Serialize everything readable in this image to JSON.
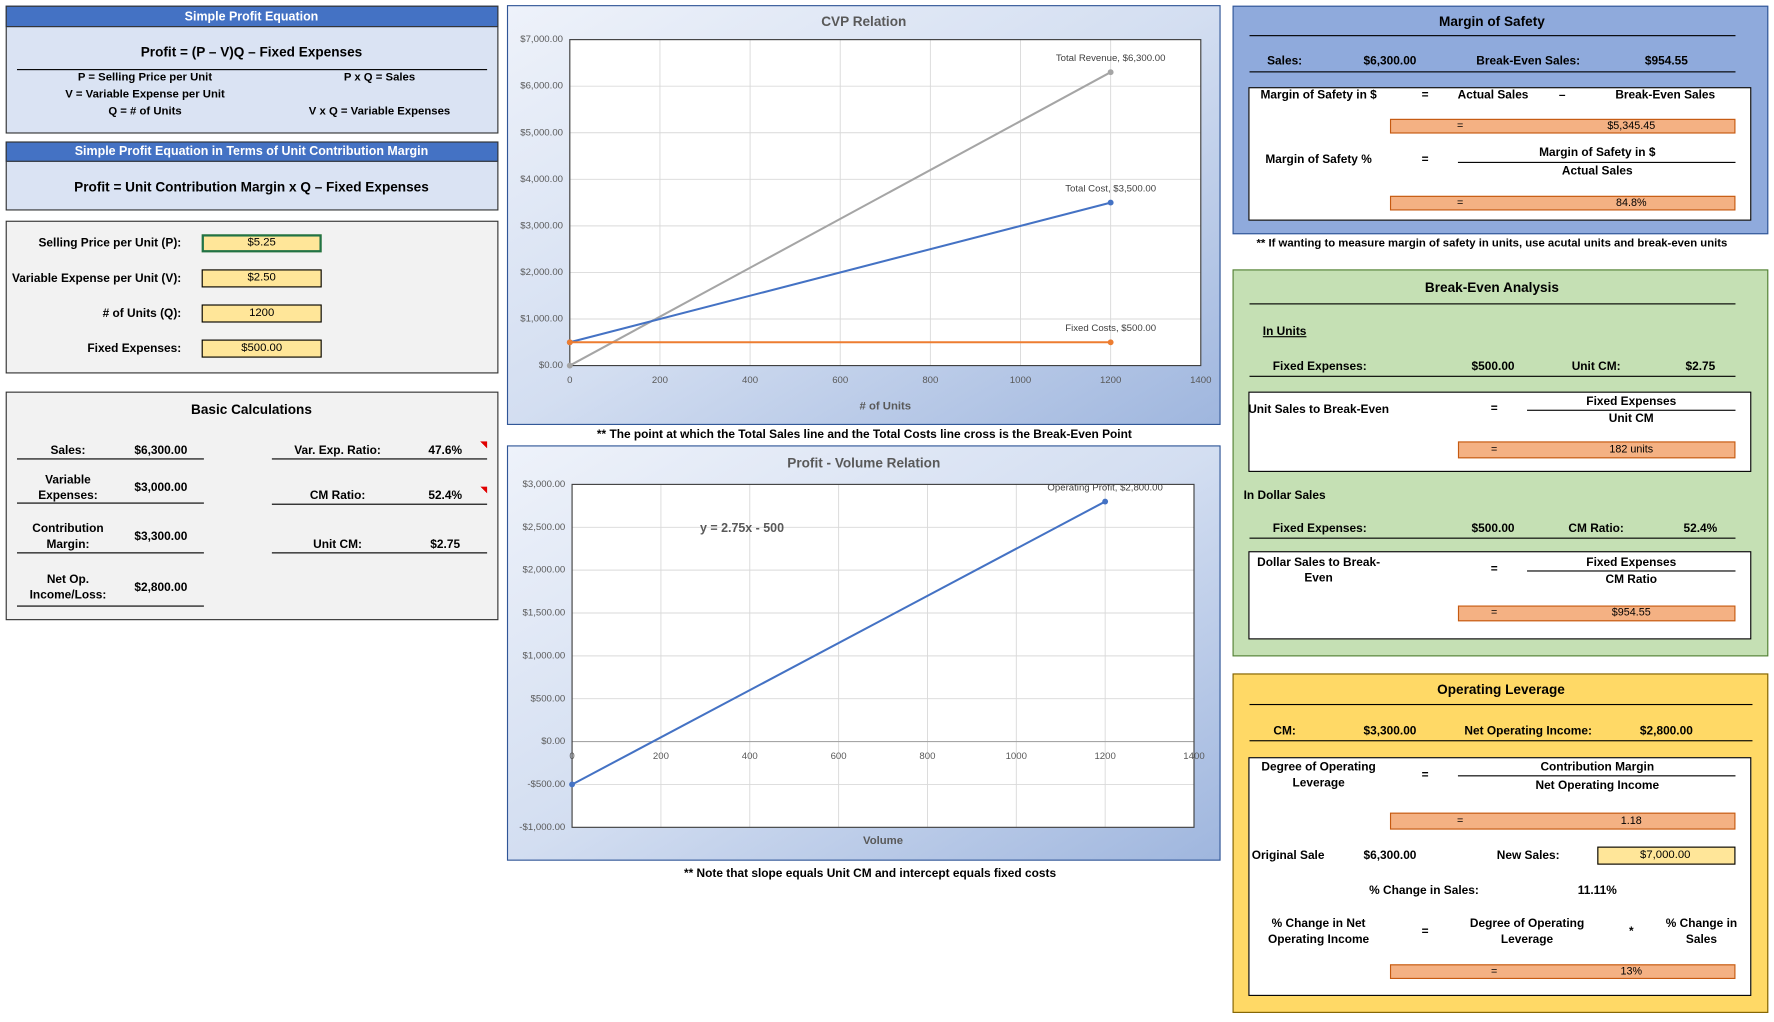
{
  "profit_equation": {
    "title": "Simple Profit Equation",
    "formula": "Profit = (P – V)Q – Fixed Expenses",
    "definitions": [
      "P = Selling Price per Unit",
      "P x Q = Sales",
      "V = Variable Expense per Unit",
      "Q = # of Units",
      "V x Q = Variable Expenses"
    ]
  },
  "ucm_equation": {
    "title": "Simple Profit Equation in Terms of Unit Contribution Margin",
    "formula": "Profit = Unit Contribution Margin x Q – Fixed Expenses"
  },
  "inputs": [
    {
      "label": "Selling Price per Unit (P):",
      "value": "$5.25"
    },
    {
      "label": "Variable Expense per Unit (V):",
      "value": "$2.50"
    },
    {
      "label": "# of Units (Q):",
      "value": "1200"
    },
    {
      "label": "Fixed Expenses:",
      "value": "$500.00"
    }
  ],
  "basic_calculations": {
    "title": "Basic Calculations",
    "left": [
      {
        "label": "Sales:",
        "value": "$6,300.00"
      },
      {
        "label": "Variable Expenses:",
        "value": "$3,000.00"
      },
      {
        "label": "Contribution Margin:",
        "value": "$3,300.00"
      },
      {
        "label": "Net Op. Income/Loss:",
        "value": "$2,800.00"
      }
    ],
    "right": [
      {
        "label": "Var. Exp. Ratio:",
        "value": "47.6%"
      },
      {
        "label": "CM Ratio:",
        "value": "52.4%"
      },
      {
        "label": "Unit CM:",
        "value": "$2.75"
      }
    ]
  },
  "chart_data": [
    {
      "type": "line",
      "title": "CVP Relation",
      "x_label": "# of Units",
      "x": [
        0,
        1200
      ],
      "xlim": [
        0,
        1400
      ],
      "xticks": [
        0,
        200,
        400,
        600,
        800,
        1000,
        1200,
        1400
      ],
      "ylim": [
        0,
        7000
      ],
      "yticks": [
        {
          "value": 0,
          "label": "$0.00"
        },
        {
          "value": 1000,
          "label": "$1,000.00"
        },
        {
          "value": 2000,
          "label": "$2,000.00"
        },
        {
          "value": 3000,
          "label": "$3,000.00"
        },
        {
          "value": 4000,
          "label": "$4,000.00"
        },
        {
          "value": 5000,
          "label": "$5,000.00"
        },
        {
          "value": 6000,
          "label": "$6,000.00"
        },
        {
          "value": 7000,
          "label": "$7,000.00"
        }
      ],
      "grid": true,
      "series": [
        {
          "color": "#a5a5a5",
          "values": [
            0,
            6300
          ],
          "value_labels": [
            null,
            "Total Revenue, $6,300.00"
          ]
        },
        {
          "color": "#4472c4",
          "values": [
            500,
            3500
          ],
          "value_labels": [
            null,
            "Total Cost, $3,500.00"
          ]
        },
        {
          "color": "#ed7d31",
          "values": [
            500,
            500
          ],
          "value_labels": [
            null,
            "Fixed Costs, $500.00"
          ]
        }
      ]
    },
    {
      "type": "line",
      "title": "Profit - Volume Relation",
      "x_label": "Volume",
      "x": [
        0,
        1200
      ],
      "xlim": [
        0,
        1400
      ],
      "xticks": [
        0,
        200,
        400,
        600,
        800,
        1000,
        1200,
        1400
      ],
      "ylim": [
        -1000,
        3000
      ],
      "yticks": [
        {
          "value": -1000,
          "label": "-$1,000.00"
        },
        {
          "value": -500,
          "label": "-$500.00"
        },
        {
          "value": 0,
          "label": "$0.00"
        },
        {
          "value": 500,
          "label": "$500.00"
        },
        {
          "value": 1000,
          "label": "$1,000.00"
        },
        {
          "value": 1500,
          "label": "$1,500.00"
        },
        {
          "value": 2000,
          "label": "$2,000.00"
        },
        {
          "value": 2500,
          "label": "$2,500.00"
        },
        {
          "value": 3000,
          "label": "$3,000.00"
        }
      ],
      "grid": true,
      "annotation": "y = 2.75x - 500",
      "series": [
        {
          "color": "#4472c4",
          "values": [
            -500,
            2800
          ],
          "value_labels": [
            null,
            "Operating Profit, $2,800.00"
          ]
        }
      ]
    }
  ],
  "cvp_note": "** The point at which the Total Sales line and the Total Costs line cross is the Break-Even Point",
  "pv_note": "** Note that slope equals Unit CM and intercept equals fixed costs",
  "margin_of_safety": {
    "title": "Margin of Safety",
    "row": [
      "Sales:",
      "$6,300.00",
      "Break-Even Sales:",
      "$954.55"
    ],
    "dollars": {
      "label": "Margin of Safety in $",
      "eq": "=",
      "a": "Actual Sales",
      "op": "–",
      "b": "Break-Even Sales",
      "result_eq": "=",
      "result": "$5,345.45"
    },
    "percent": {
      "label": "Margin of Safety %",
      "eq": "=",
      "numerator": "Margin of Safety in $",
      "denominator": "Actual Sales",
      "result_eq": "=",
      "result": "84.8%"
    },
    "note": "** If wanting to measure margin of safety in units, use acutal units and break-even units"
  },
  "break_even": {
    "title": "Break-Even Analysis",
    "units_heading": "In Units",
    "units_row": [
      "Fixed Expenses:",
      "$500.00",
      "Unit CM:",
      "$2.75"
    ],
    "units": {
      "label": "Unit Sales to Break-Even",
      "eq": "=",
      "numerator": "Fixed Expenses",
      "denominator": "Unit CM",
      "result_eq": "=",
      "result": "182 units"
    },
    "dollars_heading": "In Dollar Sales",
    "dollars_row": [
      "Fixed Expenses:",
      "$500.00",
      "CM Ratio:",
      "52.4%"
    ],
    "dollars": {
      "label": "Dollar Sales to Break-Even",
      "eq": "=",
      "numerator": "Fixed Expenses",
      "denominator": "CM Ratio",
      "result_eq": "=",
      "result": "$954.55"
    }
  },
  "operating_leverage": {
    "title": "Operating Leverage",
    "row": [
      "CM:",
      "$3,300.00",
      "Net Operating Income:",
      "$2,800.00"
    ],
    "dol": {
      "label": "Degree of Operating Leverage",
      "eq": "=",
      "numerator": "Contribution Margin",
      "denominator": "Net Operating Income",
      "result_eq": "=",
      "result": "1.18"
    },
    "original_label": "Original Sale",
    "original": "$6,300.00",
    "new_label": "New Sales:",
    "new_sales": "$7,000.00",
    "change_label": "% Change in Sales:",
    "change": "11.11%",
    "noi": {
      "label": "% Change in Net Operating Income",
      "eq": "=",
      "a": "Degree of Operating Leverage",
      "op": "*",
      "b": "% Change in Sales",
      "result_eq": "=",
      "result": "13%"
    }
  }
}
